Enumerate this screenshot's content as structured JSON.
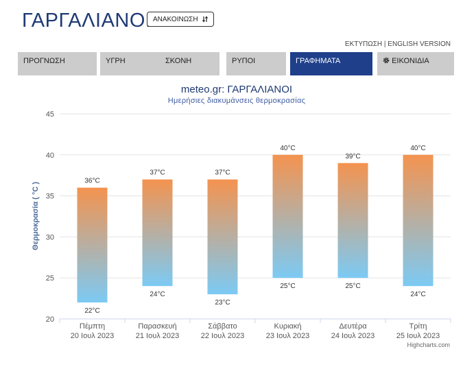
{
  "header": {
    "city": "ΓΑΡΓΑΛΙΑΝΟΙ",
    "announcements_label": "ΑΝΑΚΟΙΝΩΣΗ",
    "announcements_icon": "sort-arrow-icon",
    "print_link": "ΕΚΤΥΠΩΣΗ",
    "link_separator": "|",
    "english_link": "ENGLISH VERSION"
  },
  "nav": {
    "tabs": [
      {
        "label": "ΠΡΟΓΝΩΣΗ",
        "active": false
      },
      {
        "label": "ΥΓΡΗ",
        "active": false
      },
      {
        "label": "ΣΚΟΝΗ",
        "active": false
      },
      {
        "label": "ΡΥΠΟΙ",
        "active": false
      },
      {
        "label": "ΓΡΑΦΗΜΑΤΑ",
        "active": true
      },
      {
        "label": "ΕΙΚΟΝΙΔΙΑ",
        "active": false,
        "icon": "gear-icon"
      }
    ]
  },
  "colors": {
    "brand": "#1f3a75",
    "active_tab": "#1f3f8a",
    "bar_top": "#f4934f",
    "bar_bottom": "#7ccaf4"
  },
  "chart_data": {
    "type": "bar",
    "subtype": "columnrange",
    "title": "meteo.gr: ΓΑΡΓΑΛΙΑΝΟΙ",
    "subtitle": "Ημερήσιες διακυμάνσεις θερμοκρασίας",
    "ylabel": "Θερμοκρασία ( °C )",
    "ylim": [
      20,
      45
    ],
    "yticks": [
      20,
      25,
      30,
      35,
      40,
      45
    ],
    "grid": true,
    "credits": "Highcharts.com",
    "categories": [
      {
        "day": "Πέμπτη",
        "date": "20 Ιουλ 2023"
      },
      {
        "day": "Παρασκευή",
        "date": "21 Ιουλ 2023"
      },
      {
        "day": "Σάββατο",
        "date": "22 Ιουλ 2023"
      },
      {
        "day": "Κυριακή",
        "date": "23 Ιουλ 2023"
      },
      {
        "day": "Δευτέρα",
        "date": "24 Ιουλ 2023"
      },
      {
        "day": "Τρίτη",
        "date": "25 Ιουλ 2023"
      }
    ],
    "low": [
      22,
      24,
      23,
      25,
      25,
      24
    ],
    "high": [
      36,
      37,
      37,
      40,
      39,
      40
    ],
    "unit": "°C"
  }
}
